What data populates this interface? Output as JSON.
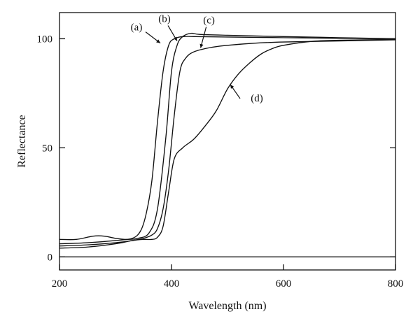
{
  "chart_data": {
    "type": "line",
    "title": "",
    "xlabel": "Wavelength (nm)",
    "ylabel": "Reflectance",
    "xlim": [
      200,
      800
    ],
    "ylim": [
      -6,
      112
    ],
    "x_ticks": [
      200,
      400,
      600,
      800
    ],
    "y_ticks": [
      0,
      50,
      100
    ],
    "grid": false,
    "legend": "none",
    "baseline": 0,
    "series": [
      {
        "name": "(a)",
        "x": [
          200,
          250,
          300,
          330,
          345,
          355,
          365,
          375,
          385,
          395,
          405,
          420,
          440,
          500,
          600,
          700,
          800
        ],
        "y": [
          6.0,
          6.5,
          7.5,
          8.5,
          12,
          20,
          35,
          62,
          85,
          97,
          100,
          101,
          101,
          100.8,
          100.5,
          100.2,
          100
        ]
      },
      {
        "name": "(b)",
        "x": [
          200,
          230,
          260,
          280,
          300,
          320,
          340,
          360,
          375,
          390,
          400,
          410,
          420,
          435,
          450,
          500,
          600,
          700,
          800
        ],
        "y": [
          8.0,
          8.0,
          9.5,
          9.5,
          8.5,
          8.0,
          8.5,
          11,
          22,
          55,
          85,
          97,
          101,
          102.5,
          102,
          101.6,
          101,
          100.5,
          100
        ]
      },
      {
        "name": "(c)",
        "x": [
          200,
          250,
          300,
          330,
          350,
          365,
          375,
          385,
          395,
          405,
          415,
          425,
          440,
          470,
          500,
          550,
          600,
          700,
          800
        ],
        "y": [
          5.0,
          5.5,
          6.5,
          7.5,
          8.5,
          10,
          13,
          22,
          40,
          65,
          85,
          91,
          94,
          96,
          97,
          98,
          98.5,
          99,
          99.5
        ]
      },
      {
        "name": "(d)",
        "x": [
          200,
          250,
          300,
          330,
          350,
          365,
          375,
          385,
          395,
          405,
          420,
          440,
          460,
          480,
          500,
          520,
          540,
          560,
          580,
          600,
          650,
          700,
          800
        ],
        "y": [
          4.0,
          4.5,
          6.0,
          7.5,
          8.0,
          8.0,
          9.0,
          14,
          30,
          45,
          50,
          54,
          60,
          67,
          77,
          84,
          89,
          93,
          95.5,
          97,
          98.8,
          99.3,
          99.7
        ]
      }
    ],
    "annotations": [
      {
        "text": "(a)",
        "target": [
          380,
          98
        ]
      },
      {
        "text": "(b)",
        "target": [
          410,
          99
        ]
      },
      {
        "text": "(c)",
        "target": [
          452,
          95.8
        ]
      },
      {
        "text": "(d)",
        "target": [
          505,
          79
        ]
      }
    ]
  }
}
